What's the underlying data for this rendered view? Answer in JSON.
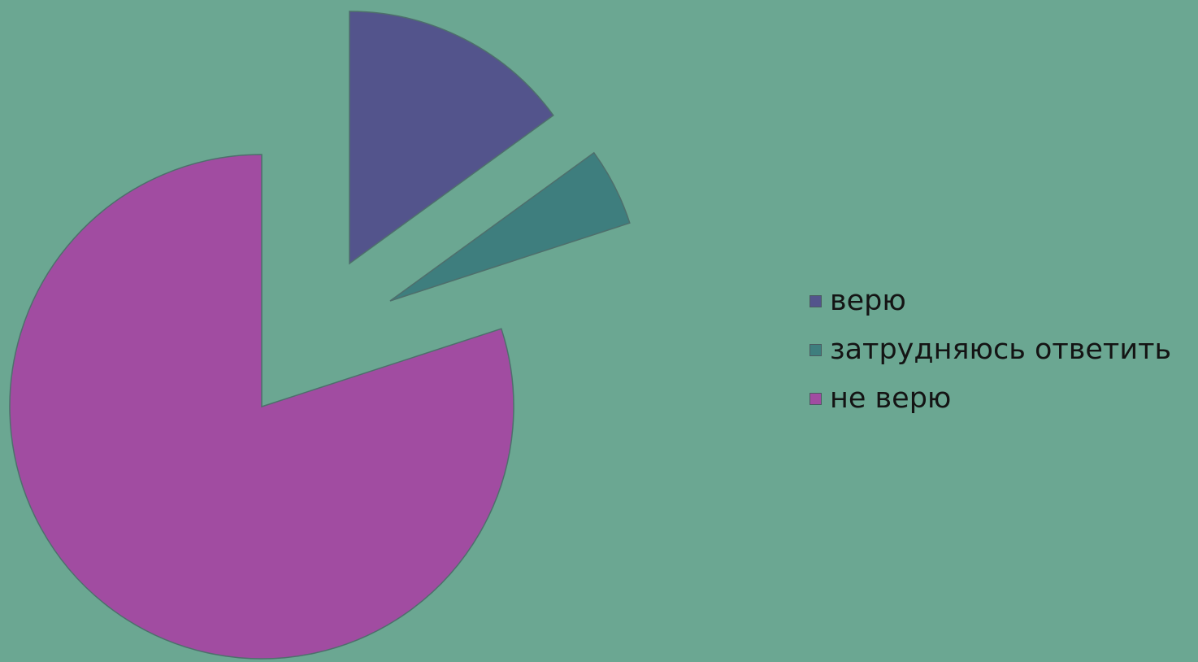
{
  "background_color": "#6ba792",
  "slice_outline_color": "#4e6f6c",
  "chart_data": {
    "type": "pie",
    "style": "exploded",
    "title": "",
    "start_angle_deg": 0,
    "direction": "clockwise",
    "legend_position": "right",
    "slices": [
      {
        "label": "верю",
        "value": 15,
        "color": "#53548c"
      },
      {
        "label": "затрудняюсь ответить",
        "value": 5,
        "color": "#3e7e7e"
      },
      {
        "label": "не верю",
        "value": 80,
        "color": "#a14ca1"
      }
    ]
  }
}
